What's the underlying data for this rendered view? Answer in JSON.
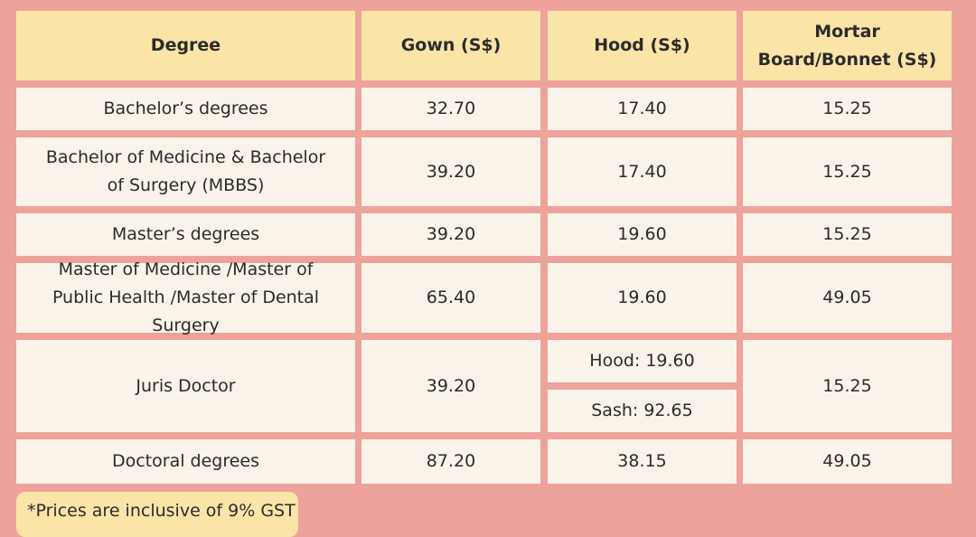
{
  "table": {
    "headers": [
      "Degree",
      "Gown (S$)",
      "Hood (S$)",
      "Mortar Board/Bonnet (S$)"
    ],
    "rows": [
      {
        "degree": "Bachelor’s degrees",
        "gown": "32.70",
        "hood": "17.40",
        "board": "15.25"
      },
      {
        "degree": "Bachelor of Medicine & Bachelor of Surgery (MBBS)",
        "gown": "39.20",
        "hood": "17.40",
        "board": "15.25"
      },
      {
        "degree": "Master’s degrees",
        "gown": "39.20",
        "hood": "19.60",
        "board": "15.25"
      },
      {
        "degree": "Master of Medicine /Master of Public Health /Master of Dental Surgery",
        "gown": "65.40",
        "hood": "19.60",
        "board": "49.05"
      },
      {
        "degree": "Juris Doctor",
        "gown": "39.20",
        "hood": "Hood: 19.60",
        "hood_extra": "Sash: 92.65",
        "board": "15.25"
      },
      {
        "degree": "Doctoral degrees",
        "gown": "87.20",
        "hood": "38.15",
        "board": "49.05"
      }
    ]
  },
  "note": "*Prices are inclusive of 9% GST",
  "colors": {
    "background": "#eea29c",
    "header_cell": "#fbe4a8",
    "body_cell": "#faf3ea"
  }
}
